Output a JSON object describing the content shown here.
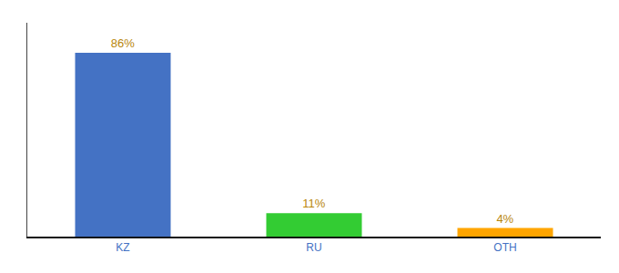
{
  "chart_data": {
    "type": "bar",
    "categories": [
      "KZ",
      "RU",
      "OTH"
    ],
    "values": [
      86,
      11,
      4
    ],
    "value_labels": [
      "86%",
      "11%",
      "4%"
    ],
    "colors": [
      "#4472C4",
      "#33CC33",
      "#FFA500"
    ],
    "ylim": [
      0,
      100
    ],
    "grid": false,
    "data_labels": true,
    "tick_labels": "x"
  }
}
